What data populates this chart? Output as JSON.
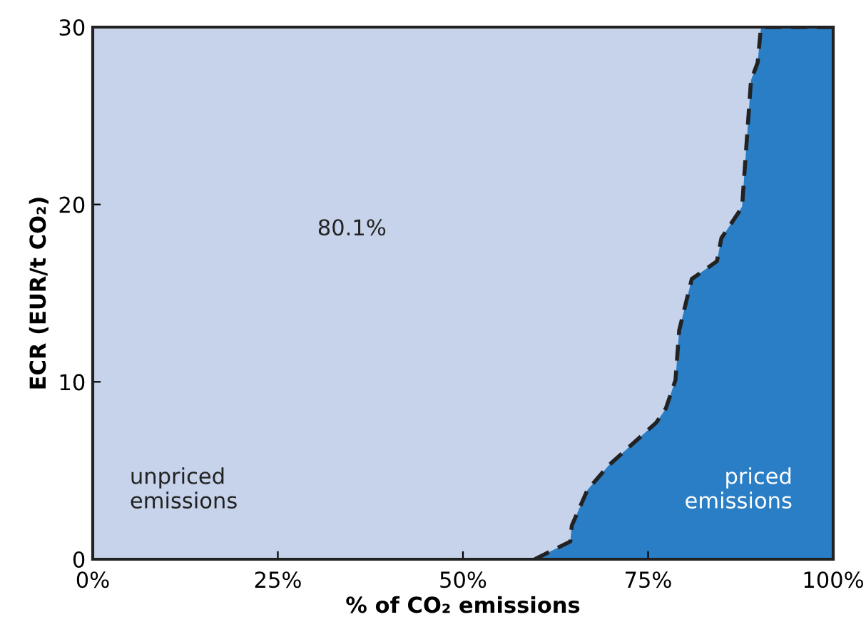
{
  "chart_data": {
    "type": "area",
    "xlabel": "% of CO₂ emissions",
    "ylabel": "ECR (EUR/t CO₂)",
    "x": [
      59.7,
      64.5,
      64.7,
      66.8,
      69.7,
      76.1,
      77.4,
      78.7,
      79.2,
      80.9,
      84.3,
      84.9,
      87.3,
      87.7,
      88.9,
      89.8,
      90.2,
      90.3,
      100
    ],
    "series": [
      {
        "color": "#2a7ec5",
        "line_style": "dashed",
        "values": [
          0,
          1,
          1.9,
          3.9,
          5.3,
          7.7,
          8.5,
          10.1,
          12.9,
          15.8,
          16.8,
          18.1,
          19.6,
          19.9,
          27,
          28,
          29.8,
          30,
          30
        ]
      }
    ],
    "xlim": [
      0,
      100
    ],
    "ylim": [
      0,
      30
    ],
    "xticks": [
      {
        "value": 0,
        "label": "0%"
      },
      {
        "value": 25,
        "label": "25%"
      },
      {
        "value": 50,
        "label": "50%"
      },
      {
        "value": 75,
        "label": "75%"
      },
      {
        "value": 100,
        "label": "100%"
      }
    ],
    "yticks": [
      0,
      10,
      20,
      30
    ],
    "bands": [
      {
        "axis": "y",
        "from": 0,
        "to": 30,
        "color": "#c7d3ea"
      }
    ],
    "annotations": [
      "80.1%",
      "unpriced\nemissions",
      "priced\nemissions"
    ],
    "grid": false,
    "legend": false
  }
}
